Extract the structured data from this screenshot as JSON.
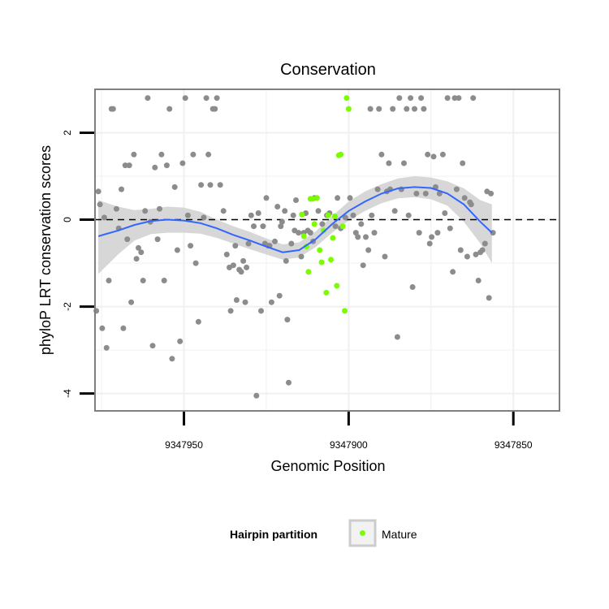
{
  "chart_data": {
    "type": "scatter",
    "title": "Conservation",
    "xlabel": "Genomic Position",
    "ylabel": "phyloP LRT conservation scores",
    "x_reversed": true,
    "xlim": [
      9347977,
      9347836
    ],
    "ylim": [
      -4.4,
      3.0
    ],
    "x_ticks": [
      9347950,
      9347900,
      9347850
    ],
    "x_tick_labels": [
      "9347950",
      "9347900",
      "9347850"
    ],
    "y_ticks": [
      -4,
      -2,
      0,
      2
    ],
    "y_tick_labels": [
      "-4",
      "-2",
      "0",
      "2"
    ],
    "grid": true,
    "reference_line": {
      "y": 0,
      "style": "dashed"
    },
    "colors": {
      "other": "#8c8c8c",
      "mature": "#7cfc00",
      "smooth": "#3366ff",
      "band": "#d3d3d3",
      "panel_border": "#7f7f7f",
      "grid": "#f0f0f0"
    },
    "legend": {
      "title": "Hairpin partition",
      "entries": [
        "Mature"
      ],
      "position": "bottom"
    },
    "series": [
      {
        "points": [
          [
            9347976.6,
            -2.1
          ],
          [
            9347976,
            0.65
          ],
          [
            9347975.5,
            0.35
          ],
          [
            9347974.8,
            -2.5
          ],
          [
            9347974.2,
            0.05
          ],
          [
            9347973.5,
            -2.95
          ],
          [
            9347972.8,
            -1.4
          ],
          [
            9347972,
            2.55
          ],
          [
            9347971.5,
            2.55
          ],
          [
            9347970.5,
            0.25
          ],
          [
            9347969.8,
            -0.2
          ],
          [
            9347969,
            0.7
          ],
          [
            9347968.4,
            -2.5
          ],
          [
            9347967.8,
            1.25
          ],
          [
            9347967.2,
            -0.45
          ],
          [
            9347966.6,
            1.25
          ],
          [
            9347966,
            -1.9
          ],
          [
            9347965.2,
            1.5
          ],
          [
            9347964.4,
            -0.9
          ],
          [
            9347963.8,
            -0.65
          ],
          [
            9347963,
            -0.75
          ],
          [
            9347962.4,
            -1.4
          ],
          [
            9347961.8,
            0.2
          ],
          [
            9347961,
            2.8
          ],
          [
            9347960.2,
            -0.05
          ],
          [
            9347959.5,
            -2.9
          ],
          [
            9347958.8,
            1.2
          ],
          [
            9347958,
            -0.45
          ],
          [
            9347957.4,
            0.25
          ],
          [
            9347956.8,
            1.5
          ],
          [
            9347956,
            -1.4
          ],
          [
            9347955.2,
            1.25
          ],
          [
            9347954.4,
            2.55
          ],
          [
            9347953.6,
            -3.2
          ],
          [
            9347952.8,
            0.75
          ],
          [
            9347952,
            -0.7
          ],
          [
            9347951.2,
            -2.8
          ],
          [
            9347950.4,
            1.3
          ],
          [
            9347949.6,
            2.8
          ],
          [
            9347948.8,
            0.1
          ],
          [
            9347948,
            -0.6
          ],
          [
            9347947.2,
            1.5
          ],
          [
            9347946.4,
            -1
          ],
          [
            9347945.6,
            -2.35
          ],
          [
            9347944.8,
            0.8
          ],
          [
            9347944,
            0.05
          ],
          [
            9347943.2,
            2.8
          ],
          [
            9347942.6,
            1.5
          ],
          [
            9347942,
            0.8
          ],
          [
            9347941.2,
            2.55
          ],
          [
            9347940.6,
            2.55
          ],
          [
            9347940,
            2.8
          ],
          [
            9347939,
            0.8
          ],
          [
            9347938,
            0.2
          ],
          [
            9347937,
            -0.8
          ],
          [
            9347936.2,
            -1.1
          ],
          [
            9347935.8,
            -2.1
          ],
          [
            9347935,
            -1.05
          ],
          [
            9347934.4,
            -0.6
          ],
          [
            9347934,
            -1.85
          ],
          [
            9347933.2,
            -1.15
          ],
          [
            9347932.6,
            -1.2
          ],
          [
            9347932,
            -0.95
          ],
          [
            9347931.4,
            -1.9
          ],
          [
            9347931,
            -1.1
          ],
          [
            9347930.4,
            -0.55
          ],
          [
            9347929.6,
            0.1
          ],
          [
            9347928.8,
            -0.15
          ],
          [
            9347928,
            -4.05
          ],
          [
            9347927.4,
            0.15
          ],
          [
            9347926.6,
            -2.1
          ],
          [
            9347926,
            -0.15
          ],
          [
            9347925.4,
            -0.55
          ],
          [
            9347925,
            0.5
          ],
          [
            9347924.4,
            -0.6
          ],
          [
            9347924,
            -0.6
          ],
          [
            9347923.4,
            -1.9
          ],
          [
            9347922.4,
            -0.5
          ],
          [
            9347921.6,
            0.3
          ],
          [
            9347921,
            -1.75
          ],
          [
            9347920.6,
            -0.15
          ],
          [
            9347920.2,
            -0.05
          ],
          [
            9347919.4,
            0.2
          ],
          [
            9347919,
            -0.95
          ],
          [
            9347918.6,
            -2.3
          ],
          [
            9347918.2,
            -3.75
          ],
          [
            9347917.4,
            -0.55
          ],
          [
            9347916.8,
            0.1
          ],
          [
            9347916.4,
            -0.25
          ],
          [
            9347916,
            0.45
          ],
          [
            9347915.2,
            -0.3
          ],
          [
            9347914.4,
            -0.85
          ],
          [
            9347913.6,
            -0.3
          ],
          [
            9347913,
            0.15
          ],
          [
            9347912.4,
            -0.25
          ],
          [
            9347911.6,
            -0.3
          ],
          [
            9347910.8,
            -0.5
          ],
          [
            9347910.4,
            0.5
          ],
          [
            9347909.2,
            0.2
          ],
          [
            9347908,
            -0.1
          ],
          [
            9347906.6,
            0.1
          ],
          [
            9347905.8,
            0.15
          ],
          [
            9347904,
            -0.15
          ],
          [
            9347903.4,
            0.5
          ],
          [
            9347902.4,
            -0.2
          ],
          [
            9347901,
            0.05
          ],
          [
            9347899.6,
            0.5
          ],
          [
            9347898.6,
            0.1
          ],
          [
            9347897.8,
            -0.3
          ],
          [
            9347897.2,
            -0.4
          ],
          [
            9347896.2,
            -0.1
          ],
          [
            9347895.6,
            -1.05
          ],
          [
            9347894.8,
            -0.4
          ],
          [
            9347894,
            -0.7
          ],
          [
            9347893.4,
            2.55
          ],
          [
            9347893,
            0.1
          ],
          [
            9347892.2,
            -0.3
          ],
          [
            9347891.2,
            0.7
          ],
          [
            9347890.8,
            2.55
          ],
          [
            9347890,
            1.5
          ],
          [
            9347889,
            -0.85
          ],
          [
            9347888.4,
            0.65
          ],
          [
            9347887.8,
            1.3
          ],
          [
            9347887.4,
            0.7
          ],
          [
            9347886.6,
            2.55
          ],
          [
            9347886,
            0.2
          ],
          [
            9347885.2,
            -2.7
          ],
          [
            9347884.6,
            2.8
          ],
          [
            9347884,
            0.7
          ],
          [
            9347883.2,
            1.3
          ],
          [
            9347882.4,
            2.55
          ],
          [
            9347881.8,
            0.1
          ],
          [
            9347881.2,
            2.8
          ],
          [
            9347880.6,
            -1.55
          ],
          [
            9347880,
            2.55
          ],
          [
            9347879.4,
            0.6
          ],
          [
            9347878.6,
            -0.3
          ],
          [
            9347878,
            2.8
          ],
          [
            9347877.2,
            2.55
          ],
          [
            9347876.6,
            0.6
          ],
          [
            9347876,
            1.5
          ],
          [
            9347875.4,
            -0.55
          ],
          [
            9347874.8,
            -0.4
          ],
          [
            9347874.2,
            1.45
          ],
          [
            9347873.6,
            0.75
          ],
          [
            9347873,
            -0.3
          ],
          [
            9347872.4,
            0.6
          ],
          [
            9347871.4,
            1.5
          ],
          [
            9347870.8,
            0.15
          ],
          [
            9347870,
            2.8
          ],
          [
            9347869.2,
            -0.2
          ],
          [
            9347868.4,
            -1.2
          ],
          [
            9347867.8,
            2.8
          ],
          [
            9347867.2,
            0.7
          ],
          [
            9347866.6,
            2.8
          ],
          [
            9347866,
            -0.7
          ],
          [
            9347865.4,
            1.3
          ],
          [
            9347864.8,
            0.5
          ],
          [
            9347864,
            -0.85
          ],
          [
            9347863.2,
            0.4
          ],
          [
            9347862.8,
            0.35
          ],
          [
            9347862.2,
            2.8
          ],
          [
            9347861.4,
            -0.8
          ],
          [
            9347860.6,
            -1.4
          ],
          [
            9347860,
            -0.75
          ],
          [
            9347859.4,
            -0.7
          ],
          [
            9347858.6,
            -0.55
          ],
          [
            9347858,
            0.65
          ],
          [
            9347857.4,
            -1.8
          ],
          [
            9347856.8,
            0.6
          ],
          [
            9347856.2,
            -0.3
          ]
        ]
      },
      {
        "name": "Mature",
        "points": [
          [
            9347914.2,
            0.12
          ],
          [
            9347913.6,
            -0.38
          ],
          [
            9347912.8,
            -0.62
          ],
          [
            9347912.2,
            -1.2
          ],
          [
            9347911.6,
            0.48
          ],
          [
            9347911,
            0.48
          ],
          [
            9347910.4,
            -0.1
          ],
          [
            9347909.6,
            0.5
          ],
          [
            9347908.8,
            -0.7
          ],
          [
            9347908.2,
            -0.98
          ],
          [
            9347907.6,
            -0.25
          ],
          [
            9347906.8,
            -1.68
          ],
          [
            9347906.2,
            0.1
          ],
          [
            9347905.4,
            -0.92
          ],
          [
            9347904.8,
            -0.42
          ],
          [
            9347904.2,
            0.08
          ],
          [
            9347903.6,
            -1.52
          ],
          [
            9347903,
            1.48
          ],
          [
            9347902.4,
            1.5
          ],
          [
            9347901.8,
            -0.15
          ],
          [
            9347901.2,
            -2.1
          ],
          [
            9347900.6,
            2.8
          ],
          [
            9347900,
            2.55
          ]
        ]
      }
    ],
    "smooth": {
      "x": [
        9347976,
        9347970,
        9347965,
        9347960,
        9347955,
        9347950,
        9347945,
        9347940,
        9347935,
        9347930,
        9347925,
        9347920,
        9347915,
        9347910,
        9347905,
        9347900,
        9347895,
        9347890,
        9347885,
        9347880,
        9347875,
        9347870,
        9347865,
        9347860,
        9347856.5
      ],
      "y": [
        -0.38,
        -0.25,
        -0.12,
        -0.03,
        0,
        -0.02,
        -0.08,
        -0.2,
        -0.35,
        -0.48,
        -0.62,
        -0.75,
        -0.7,
        -0.45,
        -0.1,
        0.2,
        0.42,
        0.6,
        0.72,
        0.75,
        0.73,
        0.6,
        0.35,
        -0.05,
        -0.3
      ],
      "lower": [
        -1.25,
        -0.8,
        -0.48,
        -0.33,
        -0.3,
        -0.3,
        -0.32,
        -0.42,
        -0.55,
        -0.68,
        -0.8,
        -0.92,
        -0.87,
        -0.63,
        -0.3,
        -0.02,
        0.2,
        0.38,
        0.49,
        0.52,
        0.47,
        0.32,
        -0.05,
        -0.55,
        -1
      ],
      "upper": [
        0.45,
        0.3,
        0.22,
        0.25,
        0.3,
        0.28,
        0.18,
        0,
        -0.15,
        -0.28,
        -0.43,
        -0.57,
        -0.52,
        -0.27,
        0.08,
        0.42,
        0.65,
        0.82,
        0.95,
        1.0,
        0.97,
        0.88,
        0.72,
        0.45,
        0.35
      ]
    }
  }
}
